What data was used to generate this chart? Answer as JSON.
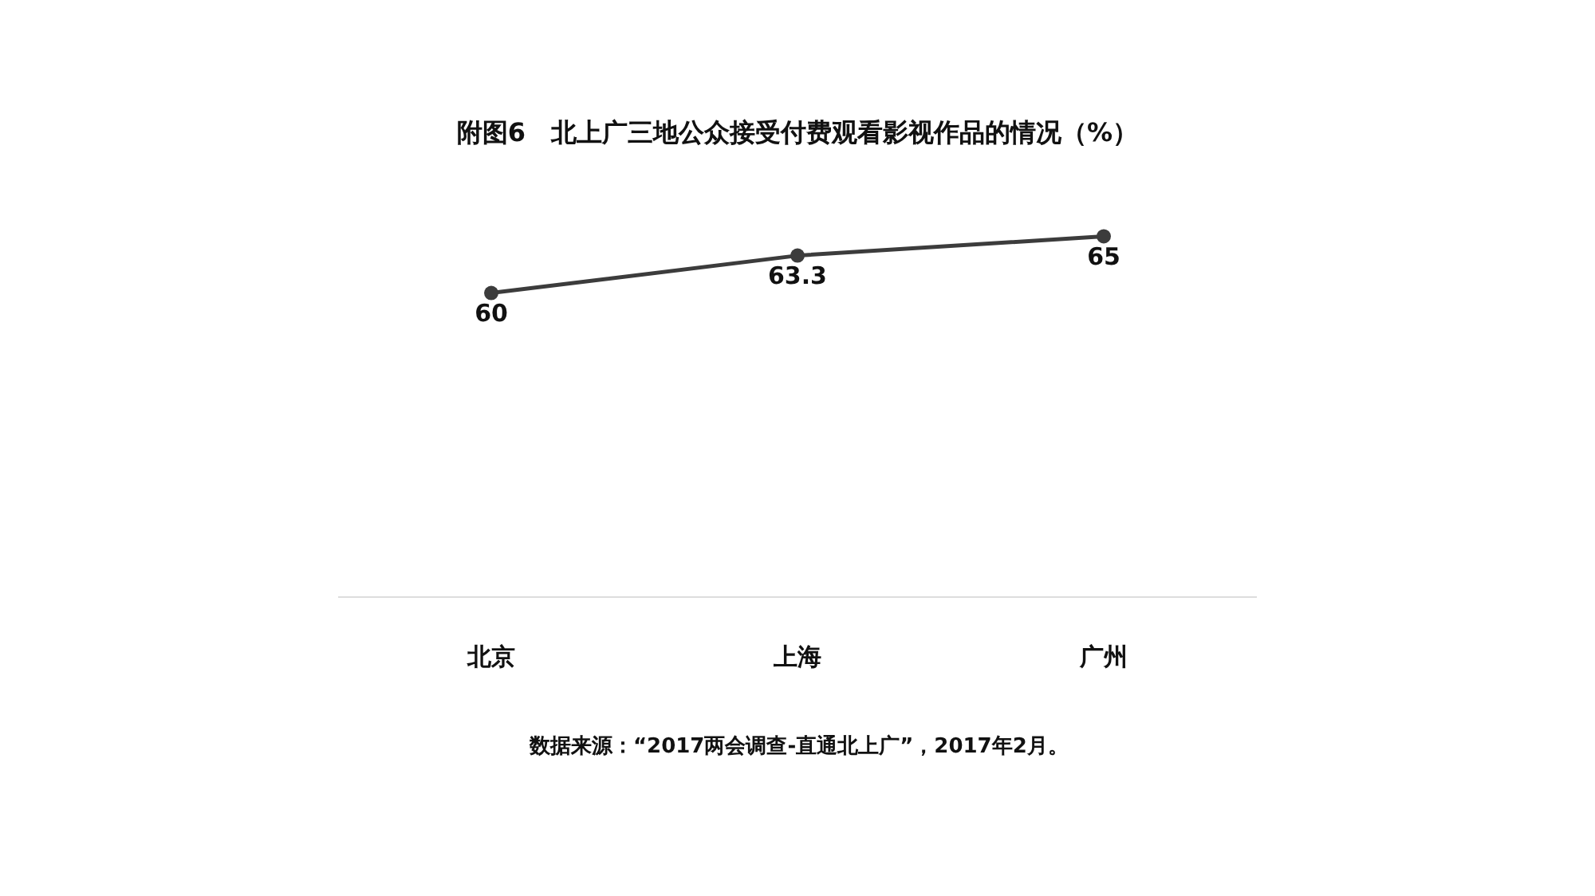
{
  "chart_data": {
    "type": "line",
    "title": "附图6　北上广三地公众接受付费观看影视作品的情况（%）",
    "categories": [
      "北京",
      "上海",
      "广州"
    ],
    "values": [
      60,
      63.3,
      65
    ],
    "color": "#3c3c3c",
    "marker": "circle",
    "data_labels": true,
    "grid": false,
    "legend": false,
    "annotations": [
      "数据来源：“2017两会调查-直通北上广”，2017年2月。"
    ]
  }
}
